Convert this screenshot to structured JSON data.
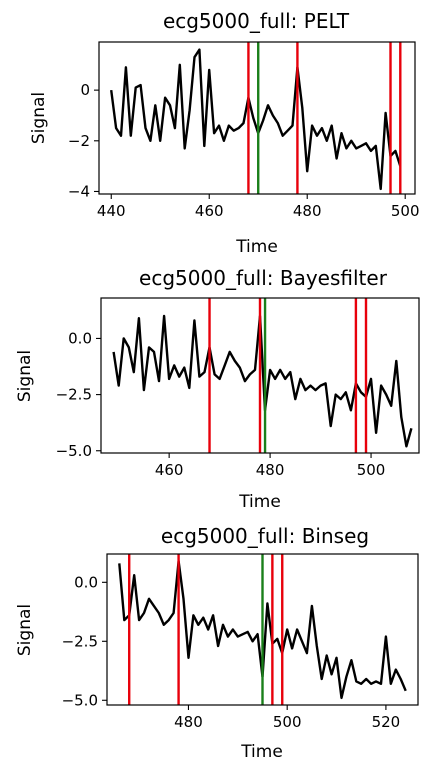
{
  "chart_data": [
    {
      "type": "line",
      "title": "ecg5000_full: PELT",
      "xlabel": "Time",
      "ylabel": "Signal",
      "xlim": [
        437.5,
        502
      ],
      "ylim": [
        -4.1,
        1.9
      ],
      "xticks": [
        440,
        460,
        480,
        500
      ],
      "yticks": [
        0,
        -2,
        -4
      ],
      "tick_labels_x": [
        "440",
        "460",
        "480",
        "500"
      ],
      "tick_labels_y": [
        "0",
        "−2",
        "−4"
      ],
      "series_color": "#000000",
      "x": [
        440,
        441,
        442,
        443,
        444,
        445,
        446,
        447,
        448,
        449,
        450,
        451,
        452,
        453,
        454,
        455,
        456,
        457,
        458,
        459,
        460,
        461,
        462,
        463,
        464,
        465,
        466,
        467,
        468,
        469,
        470,
        471,
        472,
        473,
        474,
        475,
        476,
        477,
        478,
        479,
        480,
        481,
        482,
        483,
        484,
        485,
        486,
        487,
        488,
        489,
        490,
        491,
        492,
        493,
        494,
        495,
        496,
        497,
        498,
        499
      ],
      "y": [
        0.0,
        -1.5,
        -1.8,
        0.9,
        -1.8,
        0.1,
        0.2,
        -1.5,
        -2.0,
        -0.6,
        -2.0,
        -0.3,
        -0.6,
        -1.5,
        1.0,
        -2.3,
        -0.8,
        1.3,
        1.6,
        -2.2,
        0.8,
        -1.7,
        -1.4,
        -2.0,
        -1.4,
        -1.6,
        -1.5,
        -1.3,
        -0.3,
        -1.1,
        -1.7,
        -1.2,
        -0.6,
        -1.0,
        -1.3,
        -1.8,
        -1.6,
        -1.4,
        0.9,
        -0.7,
        -3.2,
        -1.4,
        -1.8,
        -1.5,
        -2.0,
        -1.4,
        -2.7,
        -1.7,
        -2.3,
        -2.0,
        -2.3,
        -2.2,
        -2.1,
        -2.4,
        -2.2,
        -3.9,
        -0.9,
        -2.6,
        -2.4,
        -3.0
      ],
      "changepoints_red": [
        468,
        478,
        497,
        499
      ],
      "changepoints_green": [
        470
      ],
      "red_color": "#e8000b",
      "green_color": "#1a7f1a"
    },
    {
      "type": "line",
      "title": "ecg5000_full: Bayesfilter",
      "xlabel": "Time",
      "ylabel": "Signal",
      "xlim": [
        446.5,
        509.5
      ],
      "ylim": [
        -5.1,
        1.8
      ],
      "xticks": [
        460,
        480,
        500
      ],
      "yticks": [
        0.0,
        -2.5,
        -5.0
      ],
      "tick_labels_x": [
        "460",
        "480",
        "500"
      ],
      "tick_labels_y": [
        "0.0",
        "−2.5",
        "−5.0"
      ],
      "series_color": "#000000",
      "x": [
        449,
        450,
        451,
        452,
        453,
        454,
        455,
        456,
        457,
        458,
        459,
        460,
        461,
        462,
        463,
        464,
        465,
        466,
        467,
        468,
        469,
        470,
        471,
        472,
        473,
        474,
        475,
        476,
        477,
        478,
        479,
        480,
        481,
        482,
        483,
        484,
        485,
        486,
        487,
        488,
        489,
        490,
        491,
        492,
        493,
        494,
        495,
        496,
        497,
        498,
        499,
        500,
        501,
        502,
        503,
        504,
        505,
        506,
        507,
        508
      ],
      "y": [
        -0.6,
        -2.1,
        0.0,
        -0.4,
        -1.5,
        0.9,
        -2.3,
        -0.4,
        -0.6,
        -1.9,
        1.0,
        -1.8,
        -1.2,
        -1.7,
        -1.3,
        -2.2,
        0.8,
        -1.7,
        -1.5,
        -0.4,
        -1.6,
        -1.8,
        -1.2,
        -0.6,
        -1.0,
        -1.3,
        -1.9,
        -1.6,
        -1.4,
        1.0,
        -3.2,
        -1.4,
        -1.8,
        -1.4,
        -1.8,
        -1.5,
        -2.7,
        -1.8,
        -2.3,
        -2.1,
        -2.3,
        -2.1,
        -2.0,
        -3.9,
        -2.5,
        -2.7,
        -2.4,
        -3.2,
        -2.0,
        -2.4,
        -2.6,
        -1.8,
        -4.2,
        -2.1,
        -2.5,
        -3.0,
        -1.0,
        -3.5,
        -4.8,
        -4.0
      ],
      "changepoints_red": [
        468,
        478,
        497,
        499
      ],
      "changepoints_green": [
        479
      ],
      "red_color": "#e8000b",
      "green_color": "#1a7f1a"
    },
    {
      "type": "line",
      "title": "ecg5000_full: Binseg",
      "xlabel": "Time",
      "ylabel": "Signal",
      "xlim": [
        463.5,
        526.5
      ],
      "ylim": [
        -5.2,
        1.2
      ],
      "xticks": [
        480,
        500,
        520
      ],
      "yticks": [
        0.0,
        -2.5,
        -5.0
      ],
      "tick_labels_x": [
        "480",
        "500",
        "520"
      ],
      "tick_labels_y": [
        "0.0",
        "−2.5",
        "−5.0"
      ],
      "series_color": "#000000",
      "x": [
        466,
        467,
        468,
        469,
        470,
        471,
        472,
        473,
        474,
        475,
        476,
        477,
        478,
        479,
        480,
        481,
        482,
        483,
        484,
        485,
        486,
        487,
        488,
        489,
        490,
        491,
        492,
        493,
        494,
        495,
        496,
        497,
        498,
        499,
        500,
        501,
        502,
        503,
        504,
        505,
        506,
        507,
        508,
        509,
        510,
        511,
        512,
        513,
        514,
        515,
        516,
        517,
        518,
        519,
        520,
        521,
        522,
        523,
        524
      ],
      "y": [
        0.8,
        -1.6,
        -1.4,
        0.3,
        -1.6,
        -1.3,
        -0.7,
        -1.0,
        -1.3,
        -1.8,
        -1.6,
        -1.3,
        0.9,
        -0.7,
        -3.2,
        -1.4,
        -1.8,
        -1.5,
        -2.0,
        -1.4,
        -2.7,
        -1.8,
        -2.3,
        -2.0,
        -2.3,
        -2.2,
        -2.1,
        -2.5,
        -2.2,
        -4.0,
        -0.9,
        -2.6,
        -2.4,
        -3.0,
        -2.0,
        -2.8,
        -2.0,
        -2.5,
        -3.0,
        -1.0,
        -2.7,
        -4.1,
        -3.1,
        -3.9,
        -3.2,
        -4.9,
        -4.0,
        -3.3,
        -4.2,
        -4.3,
        -4.1,
        -4.3,
        -4.2,
        -4.3,
        -2.3,
        -4.3,
        -3.7,
        -4.1,
        -4.6
      ],
      "changepoints_red": [
        468,
        478,
        497,
        499
      ],
      "changepoints_green": [
        495
      ],
      "red_color": "#e8000b",
      "green_color": "#1a7f1a"
    }
  ]
}
